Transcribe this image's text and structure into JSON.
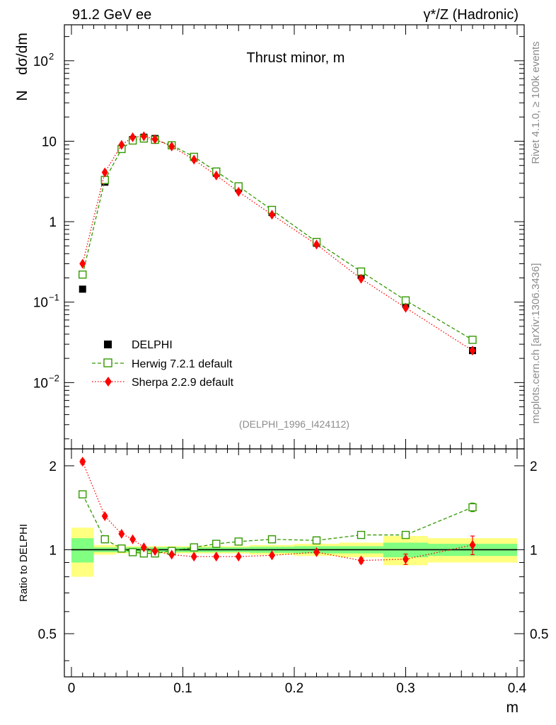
{
  "header": {
    "energy_label": "91.2 GeV ee",
    "process_label": "γ*/Z (Hadronic)"
  },
  "side_labels": {
    "rivet": "Rivet 4.1.0, ≥ 100k events",
    "mcplots": "mcplots.cern.ch [arXiv:1306.3436]"
  },
  "colors": {
    "data": "#000000",
    "herwig": "#339900",
    "sherpa": "#ff0000",
    "band_inner": "#80ff80",
    "band_outer": "#ffff80"
  },
  "chart_data": [
    {
      "type": "line",
      "panel": "main",
      "title": "Thrust minor, m",
      "ylabel_parts": [
        "N",
        "dσ/dm"
      ],
      "yscale": "log",
      "xlim": [
        0,
        0.4
      ],
      "ylim": [
        0.0015,
        280
      ],
      "ytick_labels": [
        {
          "value": 0.01,
          "base": "10",
          "exp": "−2"
        },
        {
          "value": 0.1,
          "base": "10",
          "exp": "−1"
        },
        {
          "value": 1,
          "base": "1",
          "exp": ""
        },
        {
          "value": 10,
          "base": "10",
          "exp": ""
        },
        {
          "value": 100,
          "base": "10",
          "exp": "2"
        }
      ],
      "ref_label": "(DELPHI_1996_I424112)",
      "legend": [
        "DELPHI",
        "Herwig 7.2.1 default",
        "Sherpa 2.2.9 default"
      ],
      "series": [
        {
          "name": "DELPHI",
          "style": "filled-square",
          "x": [
            0.01,
            0.03,
            0.045,
            0.055,
            0.065,
            0.075,
            0.09,
            0.11,
            0.13,
            0.15,
            0.18,
            0.22,
            0.26,
            0.3,
            0.36
          ],
          "y": [
            0.145,
            3.1,
            8.0,
            10.5,
            11.2,
            10.8,
            9.0,
            6.3,
            4.0,
            2.6,
            1.3,
            0.54,
            0.215,
            0.095,
            0.025
          ]
        },
        {
          "name": "Herwig 7.2.1 default",
          "style": "open-square-dashed",
          "x": [
            0.01,
            0.03,
            0.045,
            0.055,
            0.065,
            0.075,
            0.09,
            0.11,
            0.13,
            0.15,
            0.18,
            0.22,
            0.26,
            0.3,
            0.36
          ],
          "y": [
            0.22,
            3.3,
            8.0,
            10.2,
            10.8,
            10.4,
            8.9,
            6.4,
            4.2,
            2.75,
            1.4,
            0.56,
            0.24,
            0.105,
            0.034
          ]
        },
        {
          "name": "Sherpa 2.2.9 default",
          "style": "diamond-dotted",
          "x": [
            0.01,
            0.03,
            0.045,
            0.055,
            0.065,
            0.075,
            0.09,
            0.11,
            0.13,
            0.15,
            0.18,
            0.22,
            0.26,
            0.3,
            0.36
          ],
          "y": [
            0.3,
            4.1,
            9.0,
            11.2,
            11.5,
            10.6,
            8.6,
            5.9,
            3.75,
            2.35,
            1.22,
            0.52,
            0.195,
            0.085,
            0.025
          ]
        }
      ]
    },
    {
      "type": "line",
      "panel": "ratio",
      "ylabel": "Ratio to DELPHI",
      "xlabel": "m",
      "xlim": [
        0,
        0.4
      ],
      "ylim": [
        0.35,
        2.3
      ],
      "xtick_labels": [
        "0",
        "0.1",
        "0.2",
        "0.3",
        "0.4"
      ],
      "ytick_labels": [
        "0.5",
        "1",
        "2"
      ],
      "bins": [
        [
          0,
          0.02
        ],
        [
          0.02,
          0.04
        ],
        [
          0.04,
          0.05
        ],
        [
          0.05,
          0.06
        ],
        [
          0.06,
          0.07
        ],
        [
          0.07,
          0.08
        ],
        [
          0.08,
          0.1
        ],
        [
          0.1,
          0.12
        ],
        [
          0.12,
          0.14
        ],
        [
          0.14,
          0.16
        ],
        [
          0.16,
          0.2
        ],
        [
          0.2,
          0.24
        ],
        [
          0.24,
          0.28
        ],
        [
          0.28,
          0.32
        ],
        [
          0.32,
          0.4
        ]
      ],
      "band_inner": [
        0.1,
        0.02,
        0.02,
        0.02,
        0.02,
        0.02,
        0.02,
        0.02,
        0.02,
        0.02,
        0.025,
        0.03,
        0.03,
        0.06,
        0.05
      ],
      "band_outer": [
        0.2,
        0.04,
        0.03,
        0.03,
        0.03,
        0.03,
        0.03,
        0.03,
        0.03,
        0.03,
        0.04,
        0.05,
        0.06,
        0.12,
        0.1
      ],
      "series": [
        {
          "name": "Herwig 7.2.1 default",
          "x": [
            0.01,
            0.03,
            0.045,
            0.055,
            0.065,
            0.075,
            0.09,
            0.11,
            0.13,
            0.15,
            0.18,
            0.22,
            0.26,
            0.3,
            0.36
          ],
          "y": [
            1.58,
            1.09,
            1.01,
            0.98,
            0.97,
            0.97,
            0.99,
            1.02,
            1.05,
            1.07,
            1.09,
            1.08,
            1.13,
            1.13,
            1.42
          ],
          "err": [
            0.04,
            0.02,
            0.01,
            0.01,
            0.01,
            0.01,
            0.01,
            0.01,
            0.01,
            0.01,
            0.01,
            0.01,
            0.02,
            0.03,
            0.05
          ]
        },
        {
          "name": "Sherpa 2.2.9 default",
          "x": [
            0.01,
            0.03,
            0.045,
            0.055,
            0.065,
            0.075,
            0.09,
            0.11,
            0.13,
            0.15,
            0.18,
            0.22,
            0.26,
            0.3,
            0.36
          ],
          "y": [
            2.07,
            1.32,
            1.14,
            1.09,
            1.02,
            0.99,
            0.96,
            0.945,
            0.945,
            0.945,
            0.955,
            0.98,
            0.915,
            0.925,
            1.04
          ],
          "err": [
            0.04,
            0.02,
            0.01,
            0.01,
            0.01,
            0.01,
            0.01,
            0.01,
            0.01,
            0.01,
            0.01,
            0.01,
            0.02,
            0.04,
            0.08
          ]
        }
      ]
    }
  ]
}
